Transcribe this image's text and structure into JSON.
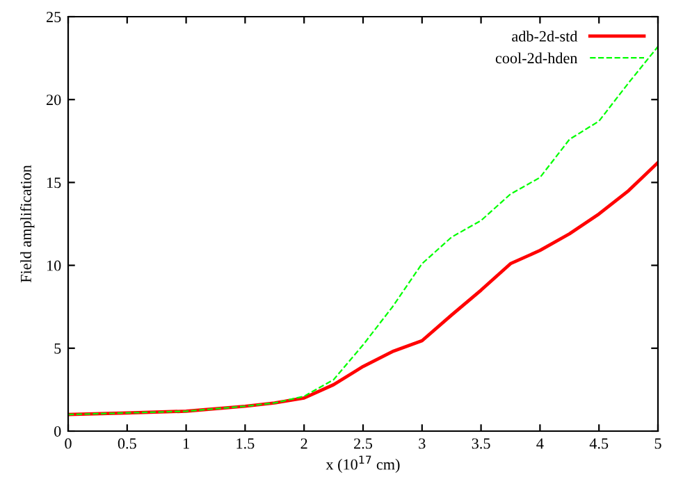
{
  "chart_data": {
    "type": "line",
    "xlabel": "x (10$^{17}$ cm)",
    "ylabel": "Field amplification",
    "x": [
      0,
      0.5,
      1,
      1.5,
      1.75,
      2,
      2.25,
      2.5,
      2.75,
      3,
      3.25,
      3.5,
      3.75,
      4,
      4.25,
      4.5,
      4.75,
      5
    ],
    "series": [
      {
        "name": "adb-2d-std",
        "color": "#ff0000",
        "line_style": "solid",
        "values": [
          1.0,
          1.1,
          1.2,
          1.5,
          1.7,
          2.0,
          2.8,
          3.9,
          4.8,
          5.45,
          7.0,
          8.5,
          10.1,
          10.9,
          11.9,
          13.1,
          14.5,
          16.2
        ]
      },
      {
        "name": "cool-2d-hden",
        "color": "#00ff00",
        "line_style": "dashed",
        "values": [
          1.0,
          1.1,
          1.2,
          1.5,
          1.7,
          2.1,
          3.1,
          5.2,
          7.5,
          10.1,
          11.7,
          12.7,
          14.3,
          15.3,
          17.6,
          18.7,
          21.0,
          23.2
        ]
      }
    ],
    "xlim": [
      0,
      5
    ],
    "xticks": [
      0,
      0.5,
      1,
      1.5,
      2,
      2.5,
      3,
      3.5,
      4,
      4.5,
      5
    ],
    "ylim": [
      0,
      25
    ],
    "yticks": [
      0,
      5,
      10,
      15,
      20,
      25
    ],
    "grid": false,
    "legend": "top right",
    "marker": "none"
  }
}
